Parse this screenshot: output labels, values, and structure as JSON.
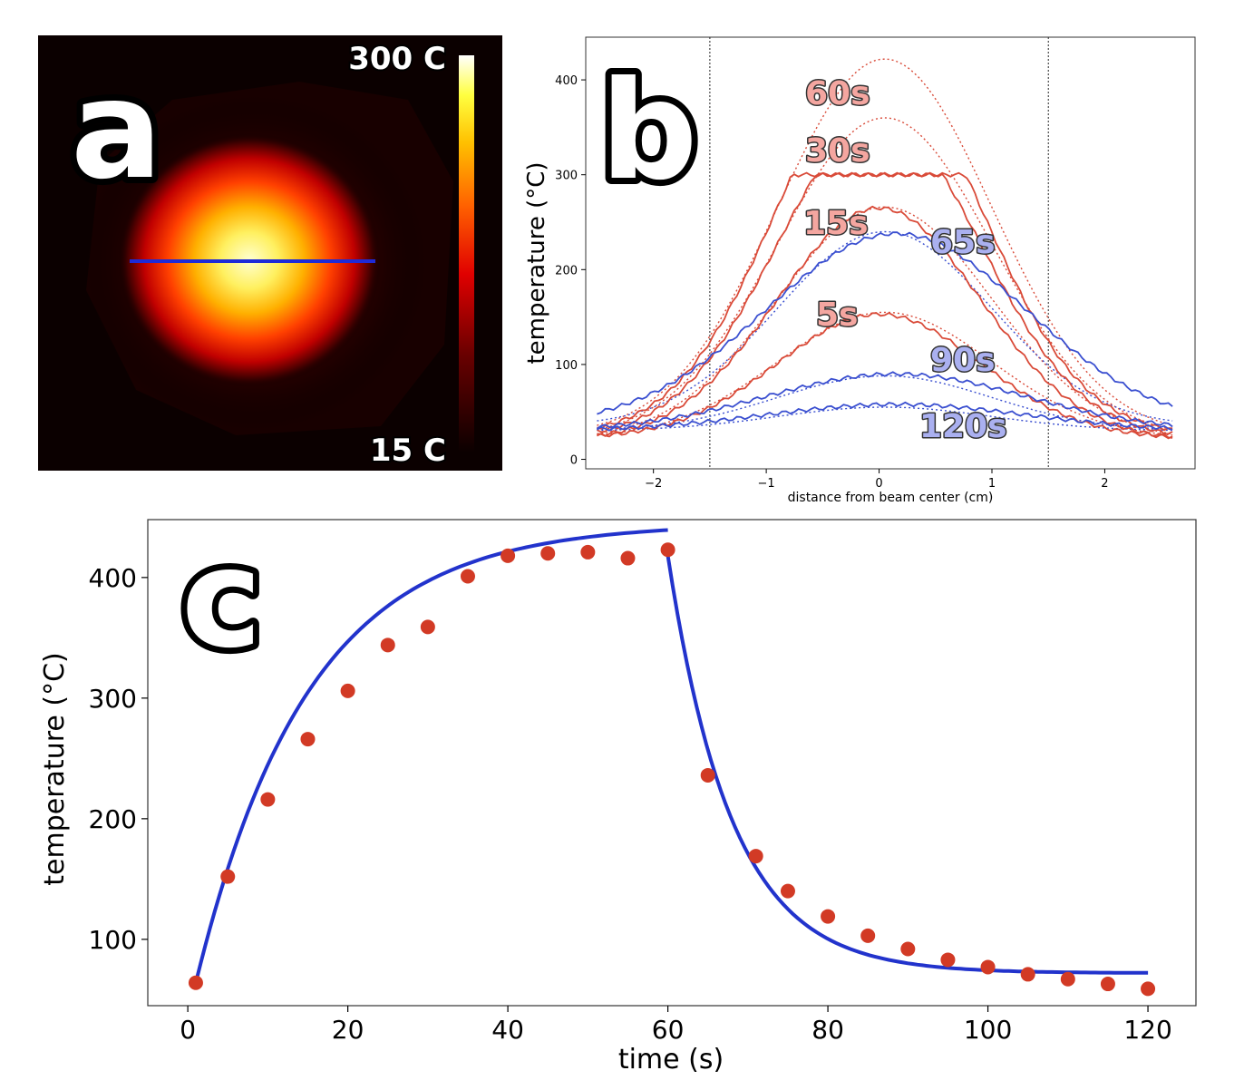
{
  "panel_a": {
    "letter": "a",
    "colorbar_max_label": "300 C",
    "colorbar_min_label": "15 C"
  },
  "panel_b": {
    "letter": "b"
  },
  "panel_c": {
    "letter": "c"
  },
  "colors": {
    "heating": "#d94a38",
    "cooling": "#3a4fd0",
    "heating_label_fill": "#f4a6a0",
    "cooling_label_fill": "#aab0f0",
    "scatter": "#d23a25",
    "fit_line": "#2233cc"
  },
  "chart_data": [
    {
      "type": "heatmap",
      "title": "",
      "colormap": "hot",
      "colorbar_range": [
        15,
        300
      ],
      "colorbar_labels": [
        "300 C",
        "15 C"
      ],
      "note_line": "blue horizontal profile line across hot spot"
    },
    {
      "type": "line",
      "xlabel": "distance from beam center (cm)",
      "ylabel": "temperature (°C)",
      "xlim": [
        -2.6,
        2.8
      ],
      "ylim": [
        -10,
        445
      ],
      "xticks": [
        -2,
        -1,
        0,
        1,
        2
      ],
      "yticks": [
        0,
        100,
        200,
        300,
        400
      ],
      "vlines": [
        -1.5,
        1.5
      ],
      "series": [
        {
          "name": "5s",
          "group": "heating",
          "peak": 153,
          "edge": 22
        },
        {
          "name": "15s",
          "group": "heating",
          "peak": 265,
          "edge": 20
        },
        {
          "name": "30s",
          "group": "heating",
          "peak": 300,
          "edge": 22,
          "saturated": true
        },
        {
          "name": "60s",
          "group": "heating",
          "peak": 300,
          "edge": 25,
          "saturated": true
        },
        {
          "name": "65s",
          "group": "cooling",
          "peak": 238,
          "edge": 35
        },
        {
          "name": "90s",
          "group": "cooling",
          "peak": 90,
          "edge": 30
        },
        {
          "name": "120s",
          "group": "cooling",
          "peak": 58,
          "edge": 30
        }
      ],
      "fits": [
        {
          "label": "5s",
          "peak": 155
        },
        {
          "label": "15s",
          "peak": 266
        },
        {
          "label": "30s",
          "peak": 360
        },
        {
          "label": "60s",
          "peak": 422
        },
        {
          "label": "65s",
          "peak": 240
        },
        {
          "label": "90s",
          "peak": 88
        },
        {
          "label": "120s",
          "peak": 55
        }
      ],
      "labels": [
        "60s",
        "30s",
        "15s",
        "5s",
        "65s",
        "90s",
        "120s"
      ]
    },
    {
      "type": "scatter",
      "xlabel": "time (s)",
      "ylabel": "temperature (°C)",
      "xlim": [
        -5,
        126
      ],
      "ylim": [
        45,
        448
      ],
      "xticks": [
        0,
        20,
        40,
        60,
        80,
        100,
        120
      ],
      "yticks": [
        100,
        200,
        300,
        400
      ],
      "points": {
        "x": [
          1,
          5,
          10,
          15,
          20,
          25,
          30,
          35,
          40,
          45,
          50,
          55,
          60,
          65,
          71,
          75,
          80,
          85,
          90,
          95,
          100,
          105,
          110,
          115,
          120
        ],
        "y": [
          64,
          152,
          216,
          266,
          306,
          344,
          359,
          401,
          418,
          420,
          421,
          416,
          423,
          236,
          169,
          140,
          119,
          103,
          92,
          83,
          77,
          71,
          67,
          63,
          59
        ]
      },
      "fit": {
        "heating": {
          "t_start": 1,
          "t_end": 60,
          "T0": 64,
          "Tinf": 445,
          "tau": 14
        },
        "cooling": {
          "t_start": 60,
          "t_end": 120,
          "T0": 418,
          "Tinf": 72,
          "tau": 8
        }
      }
    }
  ]
}
